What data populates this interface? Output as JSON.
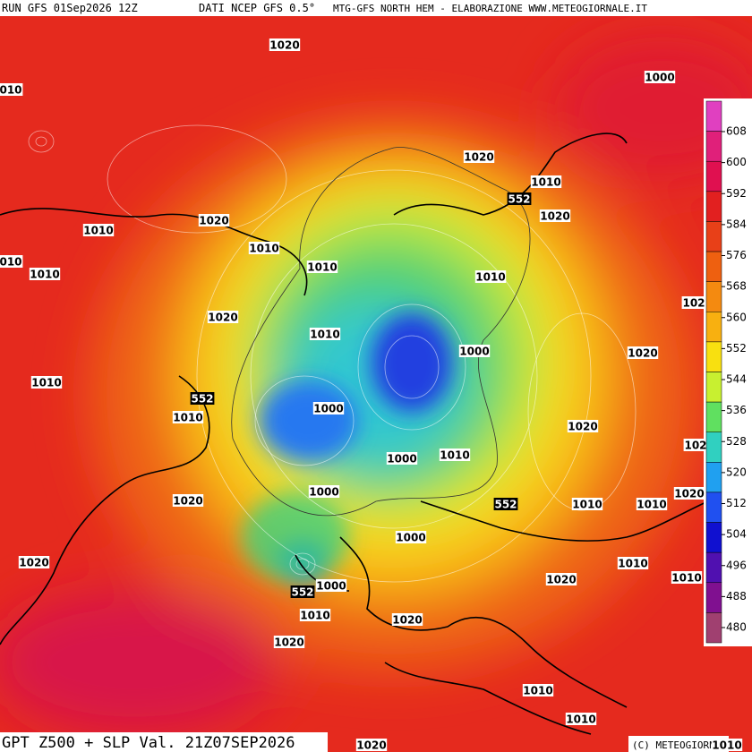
{
  "header": {
    "run": "RUN GFS 01Sep2026 12Z",
    "source": "DATI NCEP GFS 0.5°",
    "credit": "MTG-GFS NORTH HEM - ELABORAZIONE WWW.METEOGIORNALE.IT"
  },
  "footer": {
    "title": "GPT Z500 + SLP Val. 21Z07SEP2026",
    "copyright": "(C) METEOGIORNALE"
  },
  "colorbar": {
    "ticks": [
      608,
      600,
      592,
      584,
      576,
      568,
      560,
      552,
      544,
      536,
      528,
      520,
      512,
      504,
      496,
      488,
      480
    ],
    "colors": [
      "#e040c0",
      "#e0207a",
      "#e01050",
      "#e22020",
      "#e84018",
      "#ee6010",
      "#f48a10",
      "#f8b010",
      "#f8e010",
      "#c8f030",
      "#60e060",
      "#30d0c0",
      "#20a0f0",
      "#2050f0",
      "#1010d0",
      "#5010b0",
      "#801090",
      "#a04070"
    ]
  },
  "contour_labels": [
    "1020",
    "1000",
    "010",
    "1020",
    "552",
    "1010",
    "1020",
    "1010",
    "1020",
    "1010",
    "010",
    "1010",
    "1010",
    "1010",
    "1020",
    "1010",
    "1000",
    "1020",
    "1010",
    "552",
    "1010",
    "1000",
    "1020",
    "1000",
    "1010",
    "1000",
    "1020",
    "552",
    "1010",
    "1010",
    "1020",
    "1000",
    "1020",
    "1010",
    "1020",
    "1010",
    "552",
    "1000",
    "1010",
    "1020",
    "1020",
    "1010",
    "1010",
    "1020",
    "1010",
    "102",
    "102"
  ]
}
